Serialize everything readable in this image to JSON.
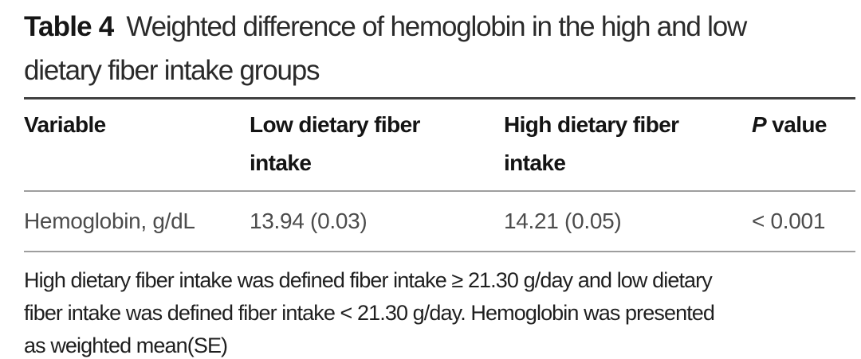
{
  "caption": {
    "label": "Table 4",
    "title_line1": "Weighted difference of hemoglobin in the high and low",
    "title_line2": "dietary fiber intake groups"
  },
  "header": {
    "col_variable": "Variable",
    "col_low": "Low dietary fiber intake",
    "col_high": "High dietary fiber intake",
    "col_p_italic": "P",
    "col_p_rest": " value"
  },
  "rows": [
    {
      "variable": "Hemoglobin, g/dL",
      "low": "13.94 (0.03)",
      "high": "14.21 (0.05)",
      "p": "< 0.001"
    }
  ],
  "footnote": {
    "line1": "High dietary fiber intake was defined fiber intake ≥ 21.30 g/day and low dietary",
    "line2": "fiber intake was defined fiber intake < 21.30 g/day. Hemoglobin was presented",
    "line3": "as weighted mean(SE)"
  },
  "colors": {
    "rule_heavy": "#414141",
    "rule_light": "#9e9e9e",
    "header_text": "#141414",
    "body_text": "#4c4c4c"
  }
}
